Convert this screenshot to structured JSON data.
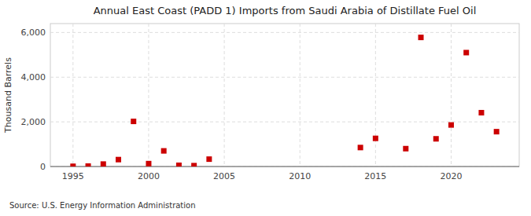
{
  "chart_data": {
    "type": "scatter",
    "title": "Annual East Coast (PADD 1) Imports from Saudi Arabia of Distillate Fuel Oil",
    "y_label": "Thousand Barrels",
    "annotations": [
      "Source: U.S. Energy Information Administration"
    ],
    "x": [
      1995,
      1996,
      1997,
      1998,
      1999,
      2000,
      2001,
      2002,
      2003,
      2004,
      2014,
      2015,
      2017,
      2018,
      2019,
      2020,
      2021,
      2022,
      2023
    ],
    "values": [
      10,
      20,
      110,
      310,
      2020,
      130,
      700,
      55,
      40,
      330,
      850,
      1260,
      800,
      5780,
      1240,
      1860,
      5100,
      2410,
      1560
    ],
    "color": "#cc0000",
    "marker": "square",
    "xlim": [
      1993.5,
      2024.5
    ],
    "xticks": [
      1995,
      2000,
      2005,
      2010,
      2015,
      2020
    ],
    "ylim": [
      0,
      6400
    ],
    "yticks": [
      0,
      {
        "value": 2000,
        "label": "2,000"
      },
      {
        "value": 4000,
        "label": "4,000"
      },
      {
        "value": 6000,
        "label": "6,000"
      }
    ],
    "grid": true
  }
}
